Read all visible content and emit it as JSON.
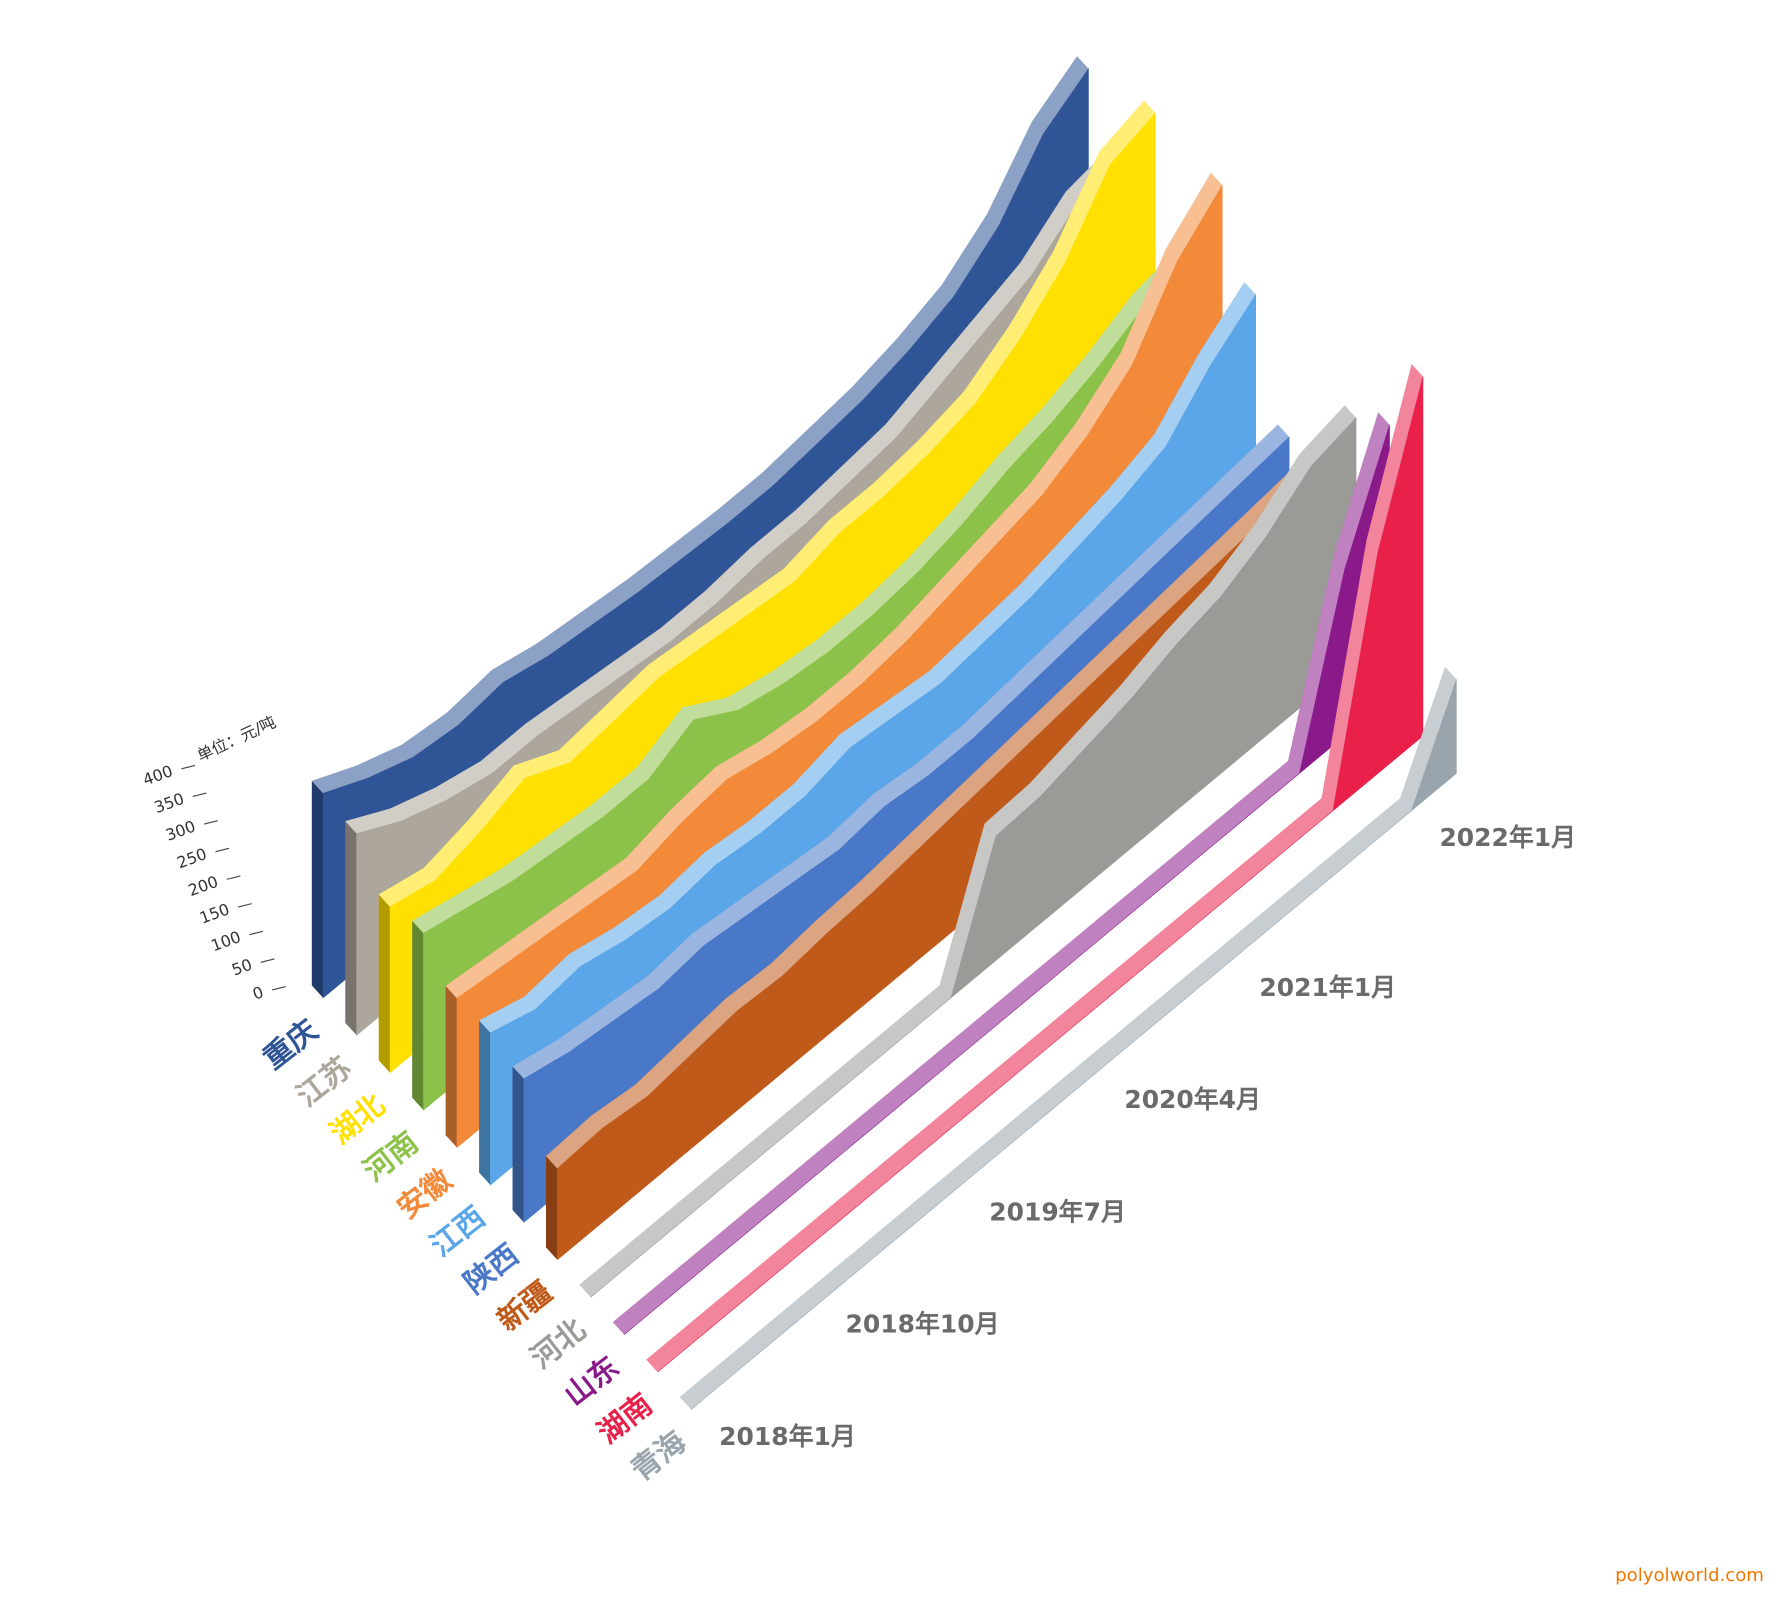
{
  "chart_data": {
    "type": "ribbon3d",
    "y_axis_label": "单位：元/吨",
    "source": "polyolworld.com",
    "categories": [
      "2018年1月",
      null,
      null,
      "2018年10月",
      null,
      null,
      "2019年7月",
      null,
      null,
      "2020年4月",
      null,
      null,
      "2021年1月",
      null,
      null,
      null,
      "2022年1月",
      null
    ],
    "ylim": [
      0,
      400
    ],
    "yticks": [
      0,
      50,
      100,
      150,
      200,
      250,
      300,
      350,
      400
    ],
    "series": [
      {
        "name": "重庆",
        "color": "#2f5597",
        "values": [
          370,
          330,
          300,
          290,
          300,
          280,
          270,
          260,
          255,
          250,
          250,
          260,
          270,
          290,
          320,
          380,
          480,
          530
        ]
      },
      {
        "name": "江苏",
        "color": "#aca69c",
        "values": [
          365,
          320,
          290,
          270,
          270,
          260,
          250,
          240,
          240,
          250,
          250,
          260,
          270,
          300,
          330,
          360,
          420,
          435
        ]
      },
      {
        "name": "湖北",
        "color": "#ffe000",
        "values": [
          300,
          280,
          300,
          330,
          290,
          300,
          310,
          300,
          290,
          280,
          300,
          300,
          310,
          330,
          380,
          450,
          560,
          585
        ]
      },
      {
        "name": "河南",
        "color": "#8dc24a",
        "values": [
          320,
          300,
          280,
          270,
          260,
          260,
          300,
          250,
          230,
          220,
          220,
          230,
          250,
          280,
          300,
          330,
          370,
          385
        ]
      },
      {
        "name": "安徽",
        "color": "#f28a3a",
        "values": [
          270,
          260,
          250,
          240,
          230,
          250,
          260,
          240,
          230,
          230,
          240,
          260,
          280,
          300,
          340,
          400,
          520,
          590
        ]
      },
      {
        "name": "江西",
        "color": "#5aa6e8",
        "values": [
          275,
          250,
          260,
          240,
          230,
          240,
          230,
          230,
          250,
          240,
          230,
          240,
          250,
          270,
          290,
          320,
          400,
          460
        ]
      },
      {
        "name": "陕西",
        "color": "#4a78c8",
        "values": [
          260,
          240,
          230,
          220,
          230,
          220,
          210,
          200,
          210,
          200,
          200,
          210,
          220,
          230,
          240,
          250,
          260,
          270
        ]
      },
      {
        "name": "新疆",
        "color": "#c05a1a",
        "values": [
          165,
          170,
          160,
          170,
          180,
          175,
          185,
          190,
          200,
          210,
          220,
          230,
          240,
          250,
          260,
          270,
          280,
          290
        ]
      },
      {
        "name": "河北",
        "color": "#9a9a96",
        "values": [
          0,
          0,
          0,
          0,
          0,
          0,
          0,
          0,
          0,
          225,
          230,
          250,
          270,
          300,
          320,
          360,
          420,
          440
        ]
      },
      {
        "name": "山东",
        "color": "#8a1a8a",
        "values": [
          0,
          0,
          0,
          0,
          0,
          0,
          0,
          0,
          0,
          0,
          0,
          0,
          0,
          0,
          0,
          0,
          300,
          495
        ]
      },
      {
        "name": "湖南",
        "color": "#e8204a",
        "values": [
          0,
          0,
          0,
          0,
          0,
          0,
          0,
          0,
          0,
          0,
          0,
          0,
          0,
          0,
          0,
          0,
          400,
          650
        ]
      },
      {
        "name": "青海",
        "color": "#9aa4ac",
        "values": [
          0,
          0,
          0,
          0,
          0,
          0,
          0,
          0,
          0,
          0,
          0,
          0,
          0,
          0,
          0,
          0,
          0,
          170
        ]
      }
    ]
  }
}
